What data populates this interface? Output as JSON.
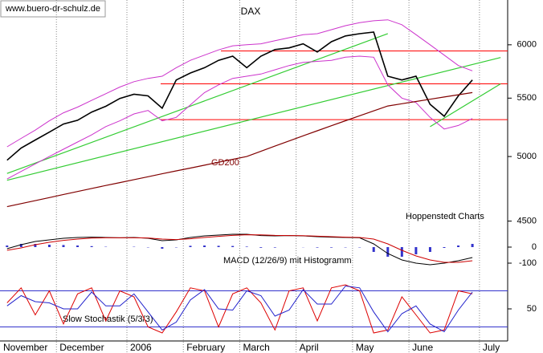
{
  "chart_data": [
    {
      "type": "line",
      "title": "DAX",
      "source": "www.buero-dr-schulz.de",
      "credit": "Hoppenstedt Charts",
      "log_scale": true,
      "categories": [
        "November",
        null,
        null,
        null,
        "December",
        null,
        null,
        null,
        null,
        "2006",
        null,
        null,
        null,
        "February",
        null,
        null,
        null,
        "March",
        null,
        null,
        null,
        "April",
        null,
        null,
        null,
        "May",
        null,
        null,
        null,
        "June",
        null,
        null,
        null,
        null,
        "July",
        null
      ],
      "ylim": [
        4480,
        6455
      ],
      "yticks": [
        4500,
        5000,
        5500,
        6000
      ],
      "series": [
        {
          "name": "DAX",
          "type": "line",
          "color": "#000000",
          "width": 1.6,
          "values": [
            4970,
            5070,
            5137,
            5203,
            5272,
            5305,
            5376,
            5427,
            5497,
            5535,
            5520,
            5410,
            5665,
            5730,
            5780,
            5850,
            5890,
            5780,
            5890,
            5953,
            5970,
            6010,
            5930,
            6030,
            6087,
            6110,
            6126,
            5700,
            5665,
            5700,
            5445,
            5340,
            5520,
            5665,
            null,
            null
          ]
        },
        {
          "name": "Bollinger upper",
          "type": "line",
          "color": "#cc33cc",
          "width": 1,
          "values": [
            5080,
            5150,
            5220,
            5300,
            5370,
            5420,
            5480,
            5540,
            5600,
            5650,
            5680,
            5700,
            5780,
            5850,
            5900,
            5950,
            5990,
            6000,
            6010,
            6040,
            6070,
            6100,
            6110,
            6150,
            6190,
            6220,
            6240,
            6250,
            6200,
            6100,
            6000,
            5900,
            5800,
            5750,
            null,
            null
          ]
        },
        {
          "name": "Bollinger lower",
          "type": "line",
          "color": "#cc33cc",
          "width": 1,
          "values": [
            4820,
            4880,
            4940,
            5000,
            5060,
            5120,
            5180,
            5250,
            5300,
            5360,
            5390,
            5300,
            5330,
            5440,
            5550,
            5620,
            5680,
            5700,
            5720,
            5760,
            5800,
            5830,
            5840,
            5850,
            5880,
            5890,
            5880,
            5620,
            5500,
            5460,
            5330,
            5230,
            5260,
            5320,
            null,
            null
          ]
        },
        {
          "name": "GD200",
          "type": "line",
          "color": "#800000",
          "width": 1.2,
          "values": [
            4607,
            4630,
            4653,
            4676,
            4700,
            4723,
            4746,
            4769,
            4792,
            4815,
            4838,
            4861,
            4884,
            4907,
            4930,
            4954,
            4977,
            5000,
            5043,
            5086,
            5129,
            5172,
            5215,
            5258,
            5301,
            5344,
            5387,
            5430,
            5450,
            5470,
            5490,
            5510,
            5530,
            5550,
            null,
            null
          ]
        }
      ],
      "gd200_label": "GD200",
      "levels": [
        5940,
        5630,
        5310
      ],
      "level_color": "#ff0000",
      "trendlines": [
        {
          "from": [
            0,
            4810
          ],
          "to": [
            35,
            5877
          ]
        },
        {
          "from": [
            0,
            4864
          ],
          "to": [
            27,
            6110
          ]
        },
        {
          "from": [
            30,
            5250
          ],
          "to": [
            35,
            5630
          ]
        }
      ],
      "trend_color": "#33cc33"
    },
    {
      "type": "line",
      "label": "MACD (12/26/9) mit Histogramm",
      "ylim": [
        -160,
        115
      ],
      "yticks": [
        0,
        -100
      ],
      "series": [
        {
          "name": "Histogramm",
          "type": "bar",
          "color": "#3333cc",
          "values": [
            10,
            20,
            20,
            15,
            13,
            10,
            6,
            2,
            0,
            2,
            -2,
            -10,
            -2,
            8,
            10,
            8,
            7,
            3,
            -4,
            -3,
            0,
            -1,
            -3,
            -3,
            -2,
            -2,
            -30,
            -60,
            -60,
            -45,
            -30,
            -5,
            10,
            20,
            null,
            null
          ]
        },
        {
          "name": "MACD",
          "type": "line",
          "color": "#000000",
          "width": 1,
          "values": [
            -10,
            15,
            35,
            45,
            55,
            60,
            62,
            60,
            58,
            60,
            55,
            40,
            45,
            60,
            70,
            75,
            80,
            80,
            72,
            70,
            72,
            70,
            65,
            62,
            60,
            58,
            20,
            -40,
            -80,
            -100,
            -110,
            -100,
            -85,
            -65,
            null,
            null
          ]
        },
        {
          "name": "Signal",
          "type": "line",
          "color": "#cc0000",
          "width": 1,
          "values": [
            -20,
            -5,
            15,
            30,
            42,
            50,
            56,
            58,
            58,
            58,
            57,
            50,
            47,
            52,
            60,
            67,
            73,
            77,
            76,
            73,
            72,
            71,
            68,
            65,
            62,
            60,
            50,
            20,
            -20,
            -55,
            -80,
            -95,
            -95,
            -85,
            null,
            null
          ]
        }
      ]
    },
    {
      "type": "line",
      "label": "Slow Stochastik (5/3/3)",
      "ylim": [
        0,
        100
      ],
      "yticks": [
        50
      ],
      "levels": [
        80,
        20
      ],
      "level_color": "#3333cc",
      "series": [
        {
          "name": "%K",
          "type": "line",
          "color": "#dd0000",
          "width": 1,
          "values": [
            60,
            85,
            40,
            80,
            25,
            75,
            85,
            30,
            80,
            70,
            20,
            10,
            45,
            85,
            80,
            20,
            75,
            85,
            60,
            15,
            80,
            85,
            30,
            85,
            90,
            80,
            10,
            15,
            70,
            40,
            10,
            15,
            80,
            75,
            null,
            null
          ]
        },
        {
          "name": "%D",
          "type": "line",
          "color": "#2222cc",
          "width": 1,
          "values": [
            55,
            72,
            62,
            60,
            50,
            50,
            78,
            55,
            55,
            75,
            45,
            15,
            28,
            65,
            82,
            50,
            48,
            80,
            72,
            38,
            48,
            82,
            58,
            58,
            88,
            85,
            45,
            12,
            42,
            55,
            25,
            12,
            48,
            78,
            null,
            null
          ]
        }
      ]
    }
  ]
}
